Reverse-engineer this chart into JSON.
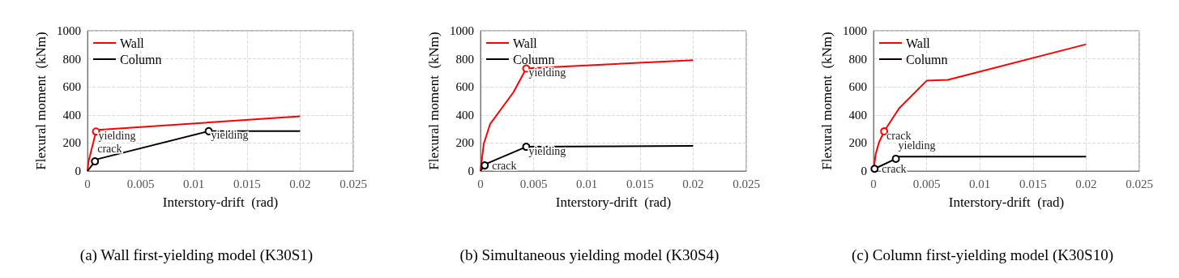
{
  "chart_data": [
    {
      "type": "line",
      "title": "(a) Wall first-yielding model (K30S1)",
      "xlabel": "Interstory-drift  (rad)",
      "ylabel": "Flexural moment  (kNm)",
      "xlim": [
        0,
        0.025
      ],
      "xticks": [
        0,
        0.005,
        0.01,
        0.015,
        0.02,
        0.025
      ],
      "ylim": [
        0,
        1000
      ],
      "yticks": [
        0,
        200,
        400,
        600,
        800,
        1000
      ],
      "grid": true,
      "legend": "top left",
      "line_style": "solid",
      "series": [
        {
          "name": "Wall",
          "color": "#ff0000",
          "x": [
            0,
            0.0001,
            0.0008,
            0.001,
            0.02
          ],
          "values": [
            0,
            69,
            282,
            294,
            390
          ]
        },
        {
          "name": "Column",
          "color": "#000000",
          "x": [
            0,
            0.0007,
            0.001,
            0.0114,
            0.02
          ],
          "values": [
            0,
            69,
            86,
            284,
            284
          ]
        }
      ],
      "annotations": [
        {
          "text": "yielding",
          "x": 0.0008,
          "y": 282
        },
        {
          "text": "crack",
          "x": 0.0007,
          "y": 69
        },
        {
          "text": "yielding",
          "x": 0.0114,
          "y": 284
        }
      ]
    },
    {
      "type": "line",
      "title": "(b) Simultaneous yielding model (K30S4)",
      "xlabel": "Interstory-drift  (rad)",
      "ylabel": "Flexural moment  (kNm)",
      "xlim": [
        0,
        0.025
      ],
      "xticks": [
        0,
        0.005,
        0.01,
        0.015,
        0.02,
        0.025
      ],
      "ylim": [
        0,
        1000
      ],
      "yticks": [
        0,
        200,
        400,
        600,
        800,
        1000
      ],
      "grid": true,
      "legend": "top left",
      "line_style": "solid",
      "series": [
        {
          "name": "Wall",
          "color": "#ff0000",
          "x": [
            0,
            0.0003,
            0.0009,
            0.0031,
            0.0043,
            0.0045,
            0.02
          ],
          "values": [
            0,
            192,
            335,
            562,
            731,
            733,
            790
          ]
        },
        {
          "name": "Column",
          "color": "#000000",
          "x": [
            0,
            0.0004,
            0.0043,
            0.02
          ],
          "values": [
            0,
            47,
            173,
            179
          ]
        }
      ],
      "annotations": [
        {
          "text": "yielding",
          "x": 0.0043,
          "y": 731
        },
        {
          "text": "crack",
          "x": 0.0004,
          "y": 40
        },
        {
          "text": "yielding",
          "x": 0.0043,
          "y": 173
        }
      ]
    },
    {
      "type": "line",
      "title": "(c) Column first-yielding model (K30S10)",
      "xlabel": "Interstory-drift  (rad)",
      "ylabel": "Flexural moment  (kNm)",
      "xlim": [
        0,
        0.025
      ],
      "xticks": [
        0,
        0.005,
        0.01,
        0.015,
        0.02,
        0.025
      ],
      "ylim": [
        0,
        1000
      ],
      "yticks": [
        0,
        200,
        400,
        600,
        800,
        1000
      ],
      "grid": true,
      "legend": "top left",
      "line_style": "solid",
      "series": [
        {
          "name": "Wall",
          "color": "#ff0000",
          "x": [
            0,
            0.0002,
            0.0005,
            0.001,
            0.0024,
            0.005,
            0.007,
            0.02
          ],
          "values": [
            0,
            120,
            201,
            283,
            447,
            644,
            650,
            904
          ]
        },
        {
          "name": "Column",
          "color": "#000000",
          "x": [
            0,
            0.0001,
            0.0021,
            0.0023,
            0.02
          ],
          "values": [
            0,
            16,
            87,
            102,
            102
          ]
        }
      ],
      "annotations": [
        {
          "text": "crack",
          "x": 0.001,
          "y": 283
        },
        {
          "text": "yielding",
          "x": 0.0021,
          "y": 87
        },
        {
          "text": "crack",
          "x": 0.0001,
          "y": 16
        }
      ]
    }
  ]
}
